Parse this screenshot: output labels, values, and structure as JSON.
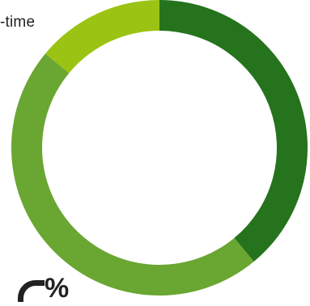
{
  "chart_data": {
    "type": "pie",
    "variant": "donut",
    "title": "",
    "slices": [
      {
        "label": "",
        "value": 39,
        "color": "#25731d"
      },
      {
        "label": "",
        "value": 47,
        "color": "#6aa632"
      },
      {
        "label": "",
        "value": 14,
        "color": "#9bc313"
      }
    ],
    "visible_text": {
      "top_left_fragment": "-time",
      "bottom_left_fragment": "%"
    }
  }
}
